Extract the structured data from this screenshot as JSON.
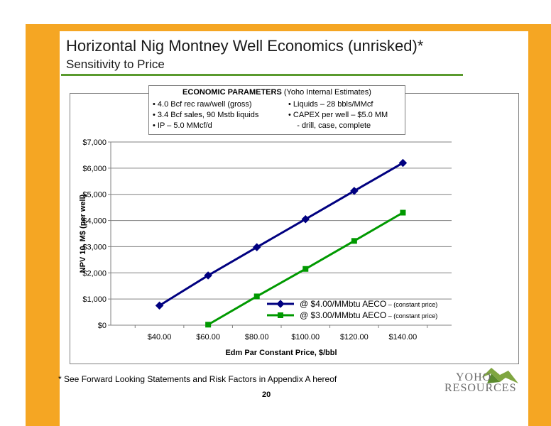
{
  "slide": {
    "title": "Horizontal Nig Montney Well Economics (unrisked)*",
    "subtitle": "Sensitivity to Price",
    "footnote": "*  See Forward Looking Statements and Risk Factors in Appendix A hereof",
    "page_number": "20",
    "logo_line1": "YOHO",
    "logo_line2": "RESOURCES"
  },
  "params": {
    "heading_bold": "ECONOMIC PARAMETERS",
    "heading_rest": " (Yoho Internal Estimates)",
    "left": [
      "• 4.0 Bcf rec raw/well (gross)",
      "• 3.4 Bcf sales, 90 Mstb liquids",
      "• IP – 5.0 MMcf/d"
    ],
    "right": [
      "•  Liquids – 28 bbls/MMcf",
      "•  CAPEX per well – $5.0 MM",
      "    - drill, case, complete"
    ]
  },
  "chart_data": {
    "type": "line",
    "xlabel": "Edm Par Constant Price, $/bbl",
    "ylabel": "NPV 10, M$ (per well)",
    "x_tick_labels": [
      "$40.00",
      "$60.00",
      "$80.00",
      "$100.00",
      "$120.00",
      "$140.00"
    ],
    "y_tick_labels": [
      "$0",
      "$1,000",
      "$2,000",
      "$3,000",
      "$4,000",
      "$5,000",
      "$6,000",
      "$7,000"
    ],
    "xlim": [
      40,
      140
    ],
    "ylim": [
      0,
      7000
    ],
    "grid": "horizontal",
    "legend_position": "bottom-right",
    "series": [
      {
        "name": "@ $4.00/MMbtu AECO",
        "name_suffix": " – (constant price)",
        "color": "#000080",
        "marker": "diamond",
        "x": [
          40,
          60,
          80,
          100,
          120,
          140
        ],
        "values": [
          750,
          1900,
          2980,
          4050,
          5130,
          6200
        ]
      },
      {
        "name": "@ $3.00/MMbtu AECO",
        "name_suffix": " – (constant price)",
        "color": "#009900",
        "marker": "square",
        "x": [
          60,
          80,
          100,
          120,
          140
        ],
        "values": [
          20,
          1100,
          2150,
          3220,
          4300
        ]
      }
    ]
  }
}
